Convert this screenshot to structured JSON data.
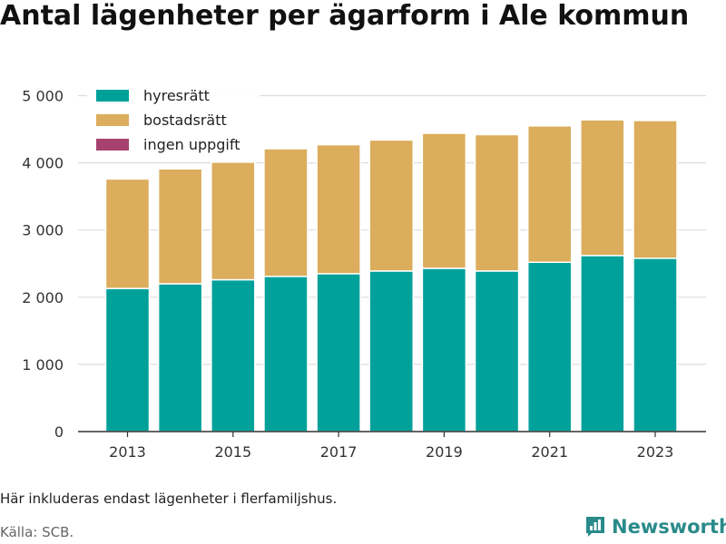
{
  "title": "Antal lägenheter per ägarform i Ale kommun",
  "note": "Här inkluderas endast lägenheter i flerfamiljshus.",
  "source": "Källa: SCB.",
  "brand": {
    "name": "Newsworthy",
    "icon": "newsworthy-logo-icon",
    "color": "#2a8a8a"
  },
  "chart_data": {
    "type": "bar",
    "stacked": true,
    "x": [
      2013,
      2014,
      2015,
      2016,
      2017,
      2018,
      2019,
      2020,
      2021,
      2022,
      2023
    ],
    "x_tick_labels": [
      "2013",
      "2015",
      "2017",
      "2019",
      "2021",
      "2023"
    ],
    "x_tick_values": [
      2013,
      2015,
      2017,
      2019,
      2021,
      2023
    ],
    "y_ticks": [
      0,
      1000,
      2000,
      3000,
      4000,
      5000
    ],
    "y_tick_labels": [
      "0",
      "1 000",
      "2 000",
      "3 000",
      "4 000",
      "5 000"
    ],
    "ylim": [
      0,
      5000
    ],
    "grid": true,
    "legend_position": "top-left",
    "series": [
      {
        "name": "hyresrätt",
        "color": "#00a19a",
        "values": [
          2130,
          2200,
          2260,
          2310,
          2350,
          2390,
          2430,
          2390,
          2520,
          2620,
          2580
        ]
      },
      {
        "name": "bostadsrätt",
        "color": "#dbad5c",
        "values": [
          1630,
          1710,
          1750,
          1900,
          1920,
          1950,
          2010,
          2030,
          2030,
          2020,
          2050
        ]
      },
      {
        "name": "ingen uppgift",
        "color": "#a7426f",
        "values": [
          0,
          0,
          0,
          0,
          0,
          0,
          0,
          0,
          0,
          0,
          0
        ]
      }
    ]
  }
}
